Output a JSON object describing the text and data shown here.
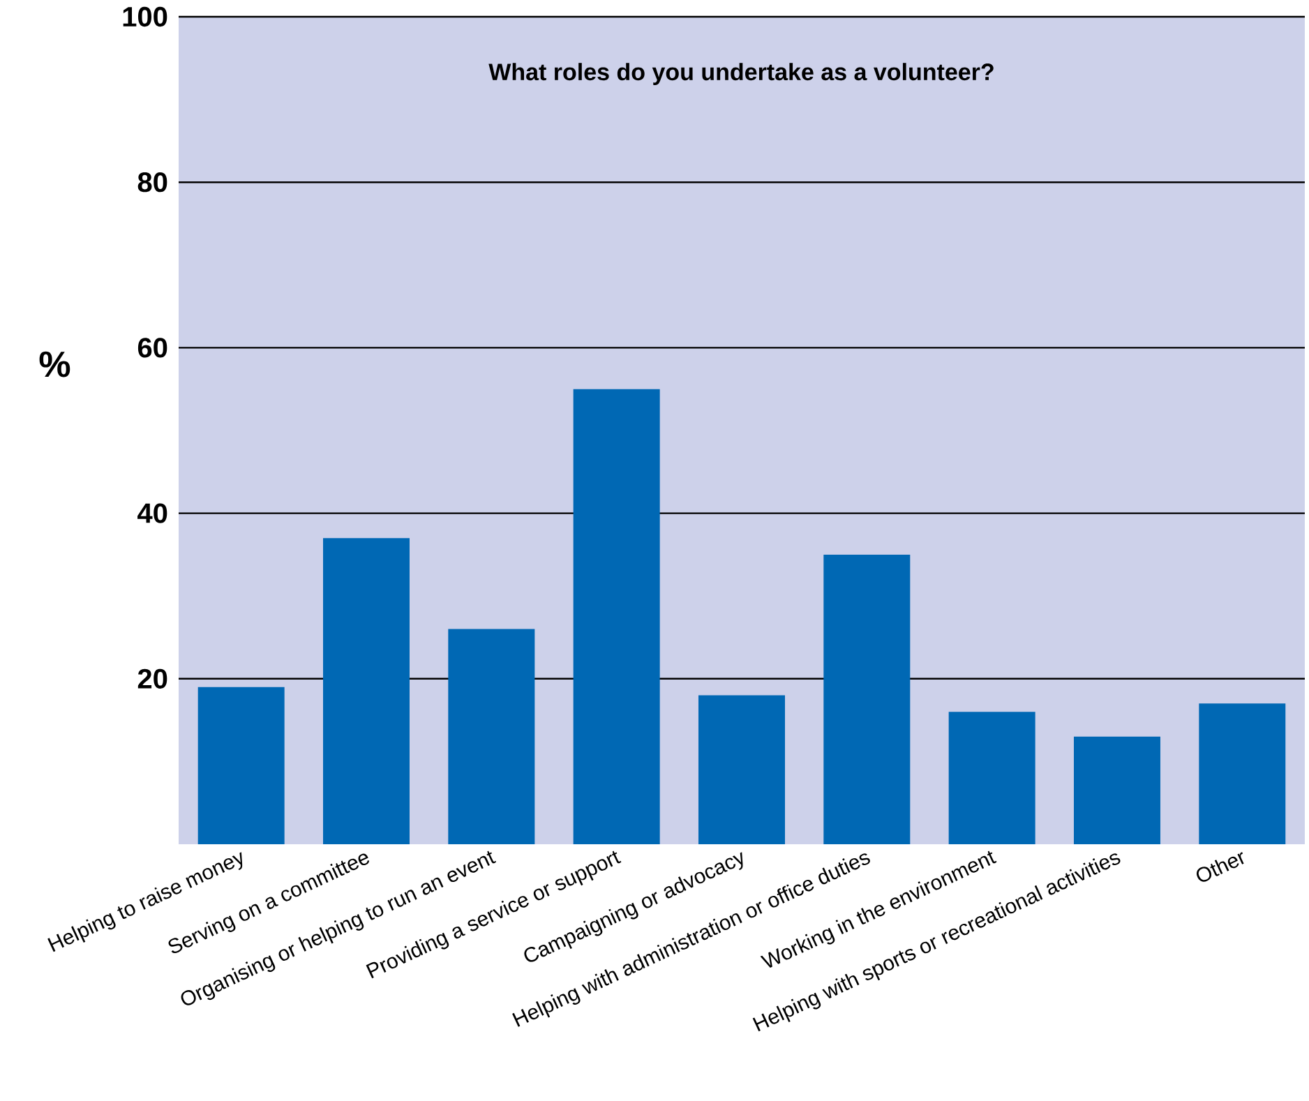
{
  "chart_data": {
    "type": "bar",
    "title": "What roles do you undertake as a volunteer?",
    "ylabel": "%",
    "categories": [
      "Helping to raise money",
      "Serving on a committee",
      "Organising or helping to run an event",
      "Providing a service or support",
      "Campaigning or advocacy",
      "Helping with administration or office duties",
      "Working in the environment",
      "Helping with sports or recreational activities",
      "Other"
    ],
    "values": [
      19,
      37,
      26,
      55,
      18,
      35,
      16,
      13,
      17
    ],
    "color": "#0068b4",
    "ylim": [
      0,
      100
    ],
    "yticks": [
      20,
      40,
      60,
      80,
      100
    ],
    "grid": "y"
  }
}
